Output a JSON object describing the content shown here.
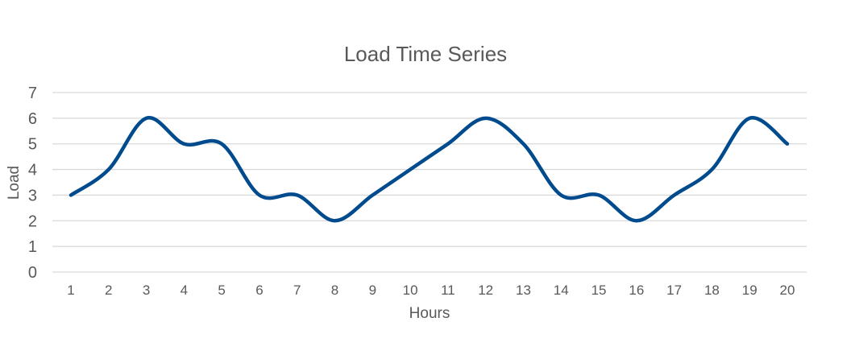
{
  "chart_data": {
    "type": "line",
    "title": "Load Time Series",
    "xlabel": "Hours",
    "ylabel": "Load",
    "x": [
      1,
      2,
      3,
      4,
      5,
      6,
      7,
      8,
      9,
      10,
      11,
      12,
      13,
      14,
      15,
      16,
      17,
      18,
      19,
      20
    ],
    "series": [
      {
        "values": [
          3,
          4,
          6,
          5,
          5,
          3,
          3,
          2,
          3,
          4,
          5,
          6,
          5,
          3,
          3,
          2,
          3,
          4,
          6,
          5
        ]
      }
    ],
    "ylim": [
      0,
      7
    ],
    "yticks": [
      0,
      1,
      2,
      3,
      4,
      5,
      6,
      7
    ],
    "grid": true,
    "smooth": true,
    "colors": {
      "series": "#004b8d",
      "grid": "#d9d9d9",
      "text": "#595959"
    }
  }
}
